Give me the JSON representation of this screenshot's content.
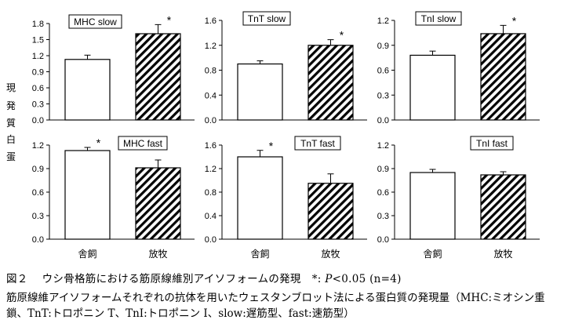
{
  "chart_data": [
    {
      "type": "bar",
      "title": "MHC slow",
      "categories": [
        "舎飼",
        "放牧"
      ],
      "values": [
        1.13,
        1.61
      ],
      "errors": [
        0.08,
        0.17
      ],
      "ylim": [
        0,
        1.8
      ],
      "yticks": [
        "0.0",
        "0.3",
        "0.6",
        "0.9",
        "1.2",
        "1.5",
        "1.8"
      ],
      "significant": [
        false,
        true
      ],
      "patterns": [
        "open",
        "hatched"
      ]
    },
    {
      "type": "bar",
      "title": "TnT slow",
      "categories": [
        "舎飼",
        "放牧"
      ],
      "values": [
        0.9,
        1.2
      ],
      "errors": [
        0.05,
        0.09
      ],
      "ylim": [
        0,
        1.6
      ],
      "yticks": [
        "0.0",
        "0.4",
        "0.8",
        "1.2",
        "1.6"
      ],
      "significant": [
        false,
        true
      ],
      "patterns": [
        "open",
        "hatched"
      ]
    },
    {
      "type": "bar",
      "title": "TnI slow",
      "categories": [
        "舎飼",
        "放牧"
      ],
      "values": [
        0.78,
        1.04
      ],
      "errors": [
        0.05,
        0.1
      ],
      "ylim": [
        0,
        1.2
      ],
      "yticks": [
        "0.0",
        "0.3",
        "0.6",
        "0.9",
        "1.2"
      ],
      "significant": [
        false,
        true
      ],
      "patterns": [
        "open",
        "hatched"
      ]
    },
    {
      "type": "bar",
      "title": "MHC fast",
      "categories": [
        "舎飼",
        "放牧"
      ],
      "values": [
        1.13,
        0.91
      ],
      "errors": [
        0.04,
        0.1
      ],
      "ylim": [
        0,
        1.2
      ],
      "yticks": [
        "0.0",
        "0.3",
        "0.6",
        "0.9",
        "1.2"
      ],
      "significant": [
        true,
        false
      ],
      "patterns": [
        "open",
        "hatched"
      ]
    },
    {
      "type": "bar",
      "title": "TnT fast",
      "categories": [
        "舎飼",
        "放牧"
      ],
      "values": [
        1.4,
        0.95
      ],
      "errors": [
        0.11,
        0.16
      ],
      "ylim": [
        0,
        1.6
      ],
      "yticks": [
        "0.0",
        "0.4",
        "0.8",
        "1.2",
        "1.6"
      ],
      "significant": [
        true,
        false
      ],
      "patterns": [
        "open",
        "hatched"
      ]
    },
    {
      "type": "bar",
      "title": "TnI fast",
      "categories": [
        "舎飼",
        "放牧"
      ],
      "values": [
        0.85,
        0.82
      ],
      "errors": [
        0.04,
        0.04
      ],
      "ylim": [
        0,
        1.2
      ],
      "yticks": [
        "0.0",
        "0.3",
        "0.6",
        "0.9",
        "1.2"
      ],
      "significant": [
        false,
        false
      ],
      "patterns": [
        "open",
        "hatched"
      ]
    }
  ],
  "ylabel": "蛋白質発現",
  "significance_mark": "*",
  "category_labels": [
    "舎飼",
    "放牧"
  ],
  "caption": {
    "figure_no": "図２",
    "title": "ウシ骨格筋における筋原線維別アイソフォームの発現",
    "note_star": "*:",
    "note_p": "P",
    "note_rest": "<0.05 (n=4)",
    "description": "筋原線維アイソフォームそれぞれの抗体を用いたウェスタンブロット法による蛋白質の発現量（MHC:ミオシン重鎖、TnT:トロポニン T、TnI:トロポニン I、slow:遅筋型、fast:速筋型）"
  }
}
